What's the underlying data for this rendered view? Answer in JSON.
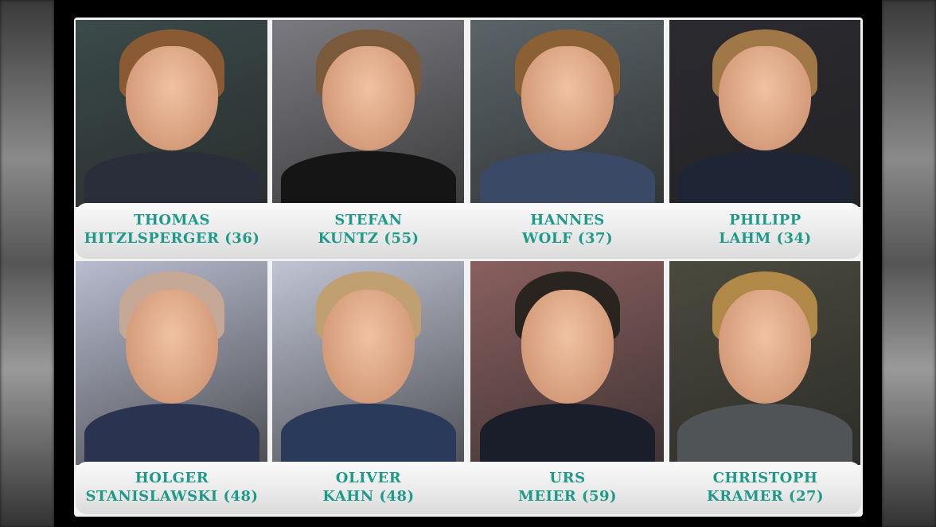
{
  "people": [
    {
      "first": "THOMAS",
      "last": "HITZLSPERGER (36)"
    },
    {
      "first": "STEFAN",
      "last": "KUNTZ (55)"
    },
    {
      "first": "HANNES",
      "last": "WOLF (37)"
    },
    {
      "first": "PHILIPP",
      "last": "LAHM (34)"
    },
    {
      "first": "HOLGER",
      "last": "STANISLAWSKI (48)"
    },
    {
      "first": "OLIVER",
      "last": "KAHN (48)"
    },
    {
      "first": "URS",
      "last": "MEIER (59)"
    },
    {
      "first": "CHRISTOPH",
      "last": "KRAMER (27)"
    }
  ],
  "colors": {
    "name_text": "#1f9a8a",
    "frame": "#000000"
  }
}
